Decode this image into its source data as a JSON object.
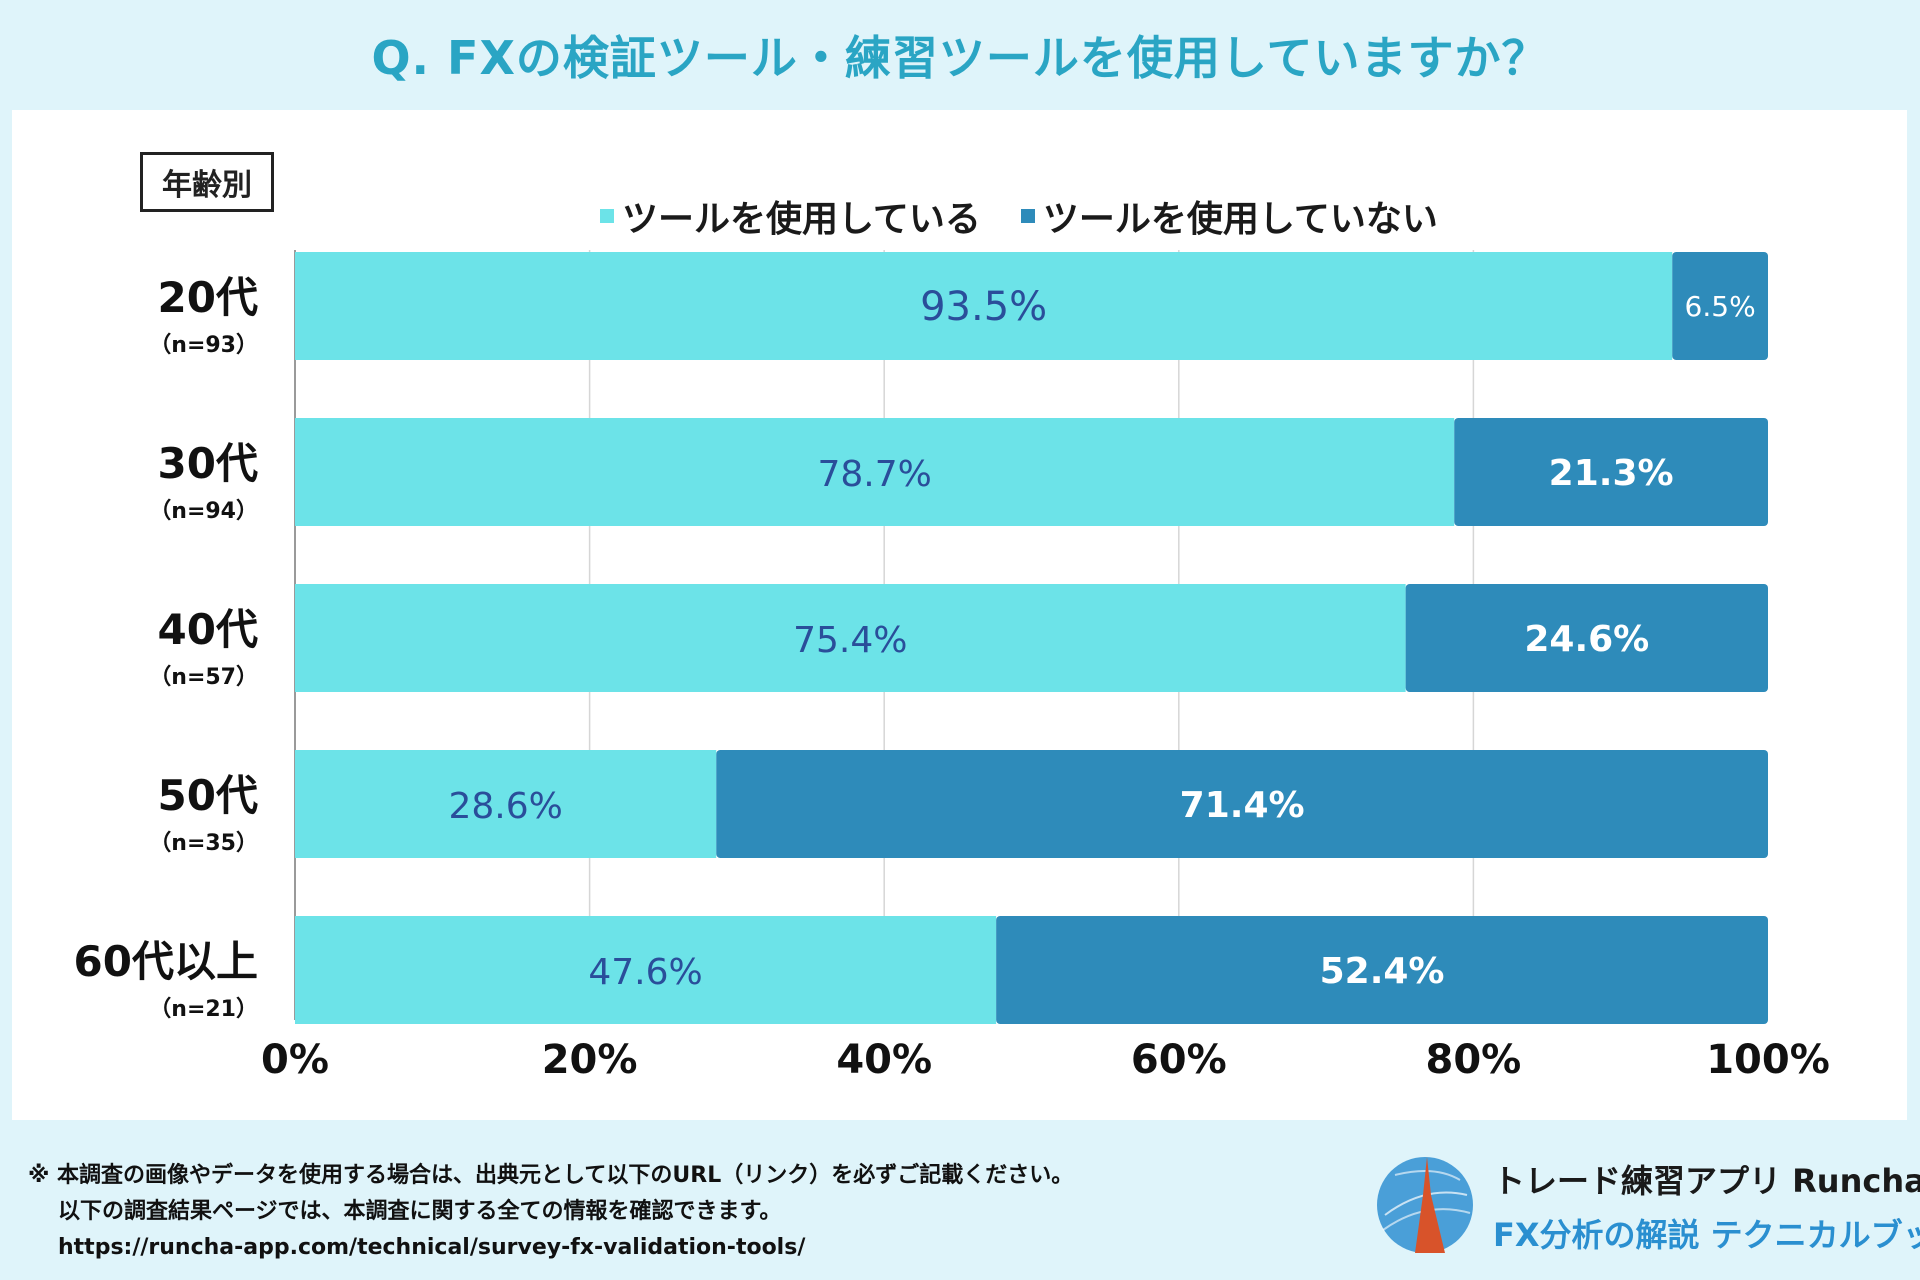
{
  "title": "Q. FXの検証ツール・練習ツールを使用していますか？",
  "colors": {
    "used": "#6ce3e8",
    "not_used": "#2e8bba",
    "used_label": "#2a4e9a",
    "not_used_label": "#ffffff",
    "grid": "#d6d6d6"
  },
  "chart_data": {
    "type": "bar",
    "orientation": "horizontal",
    "stacked": "percent",
    "group_label": "年齢別",
    "categories": [
      "20代",
      "30代",
      "40代",
      "50代",
      "60代以上"
    ],
    "sample_sizes": [
      "（n=93）",
      "（n=94）",
      "（n=57）",
      "（n=35）",
      "（n=21）"
    ],
    "series": [
      {
        "name": "ツールを使用している",
        "values": [
          93.5,
          78.7,
          75.4,
          28.6,
          47.6
        ],
        "labels": [
          "93.5%",
          "78.7%",
          "75.4%",
          "28.6%",
          "47.6%"
        ]
      },
      {
        "name": "ツールを使用していない",
        "values": [
          6.5,
          21.3,
          24.6,
          71.4,
          52.4
        ],
        "labels": [
          "6.5%",
          "21.3%",
          "24.6%",
          "71.4%",
          "52.4%"
        ]
      }
    ],
    "xlim": [
      0,
      100
    ],
    "xticks": [
      "0%",
      "20%",
      "40%",
      "60%",
      "80%",
      "100%"
    ],
    "grid": true,
    "legend": "top"
  },
  "footer": {
    "line1": "※ 本調査の画像やデータを使用する場合は、出典元として以下のURL（リンク）を必ずご記載ください。",
    "line2": "以下の調査結果ページでは、本調査に関する全ての情報を確認できます。",
    "url": "https://runcha-app.com/technical/survey-fx-validation-tools/"
  },
  "brand": {
    "name": "トレード練習アプリ Runcha",
    "subtitle": "FX分析の解説 テクニカルブック"
  }
}
